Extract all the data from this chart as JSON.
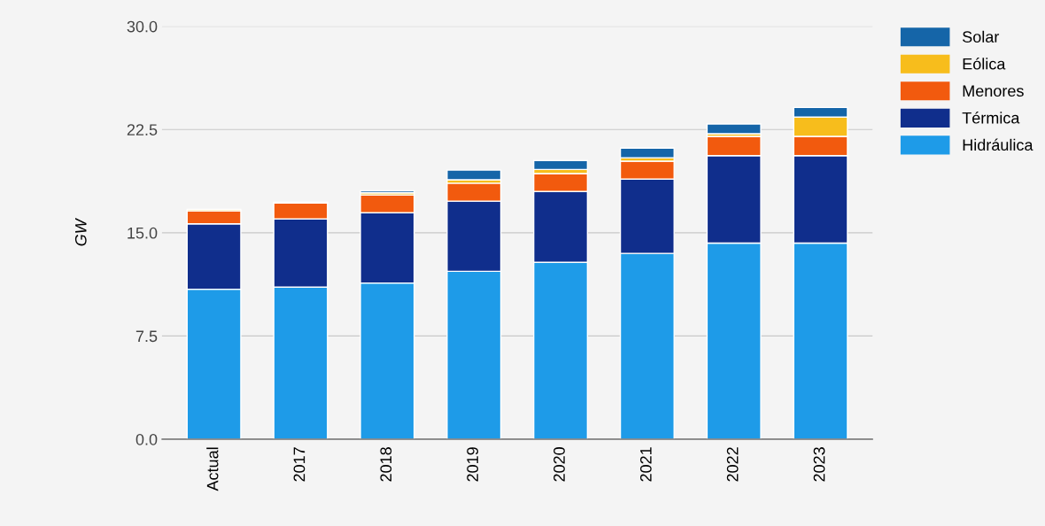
{
  "chart_data": {
    "type": "bar",
    "stacked": true,
    "ylabel": "GW",
    "categories": [
      "Actual",
      "2017",
      "2018",
      "2019",
      "2020",
      "2021",
      "2022",
      "2023"
    ],
    "series": [
      {
        "name": "Hidráulica",
        "color": "#1e9be8",
        "values": [
          10.9,
          11.05,
          11.35,
          12.2,
          12.85,
          13.5,
          14.25,
          14.25
        ]
      },
      {
        "name": "Térmica",
        "color": "#102e8c",
        "values": [
          4.75,
          4.95,
          5.1,
          5.1,
          5.15,
          5.4,
          6.35,
          6.35
        ]
      },
      {
        "name": "Menores",
        "color": "#f25a0e",
        "values": [
          0.95,
          1.15,
          1.3,
          1.3,
          1.3,
          1.3,
          1.4,
          1.4
        ]
      },
      {
        "name": "Eólica",
        "color": "#f7bd1c",
        "values": [
          0.1,
          0.05,
          0.15,
          0.25,
          0.3,
          0.25,
          0.2,
          1.4
        ]
      },
      {
        "name": "Solar",
        "color": "#1565a8",
        "values": [
          null,
          0.02,
          0.15,
          0.7,
          0.65,
          0.7,
          0.7,
          0.7
        ]
      }
    ],
    "ylim": [
      0,
      30
    ],
    "yticks": [
      {
        "value": 0,
        "label": "0.0"
      },
      {
        "value": 7.5,
        "label": "7.5"
      },
      {
        "value": 15,
        "label": "15.0"
      },
      {
        "value": 22.5,
        "label": "22.5"
      },
      {
        "value": 30,
        "label": "30.0"
      }
    ],
    "grid": "y",
    "legend": "top right"
  }
}
